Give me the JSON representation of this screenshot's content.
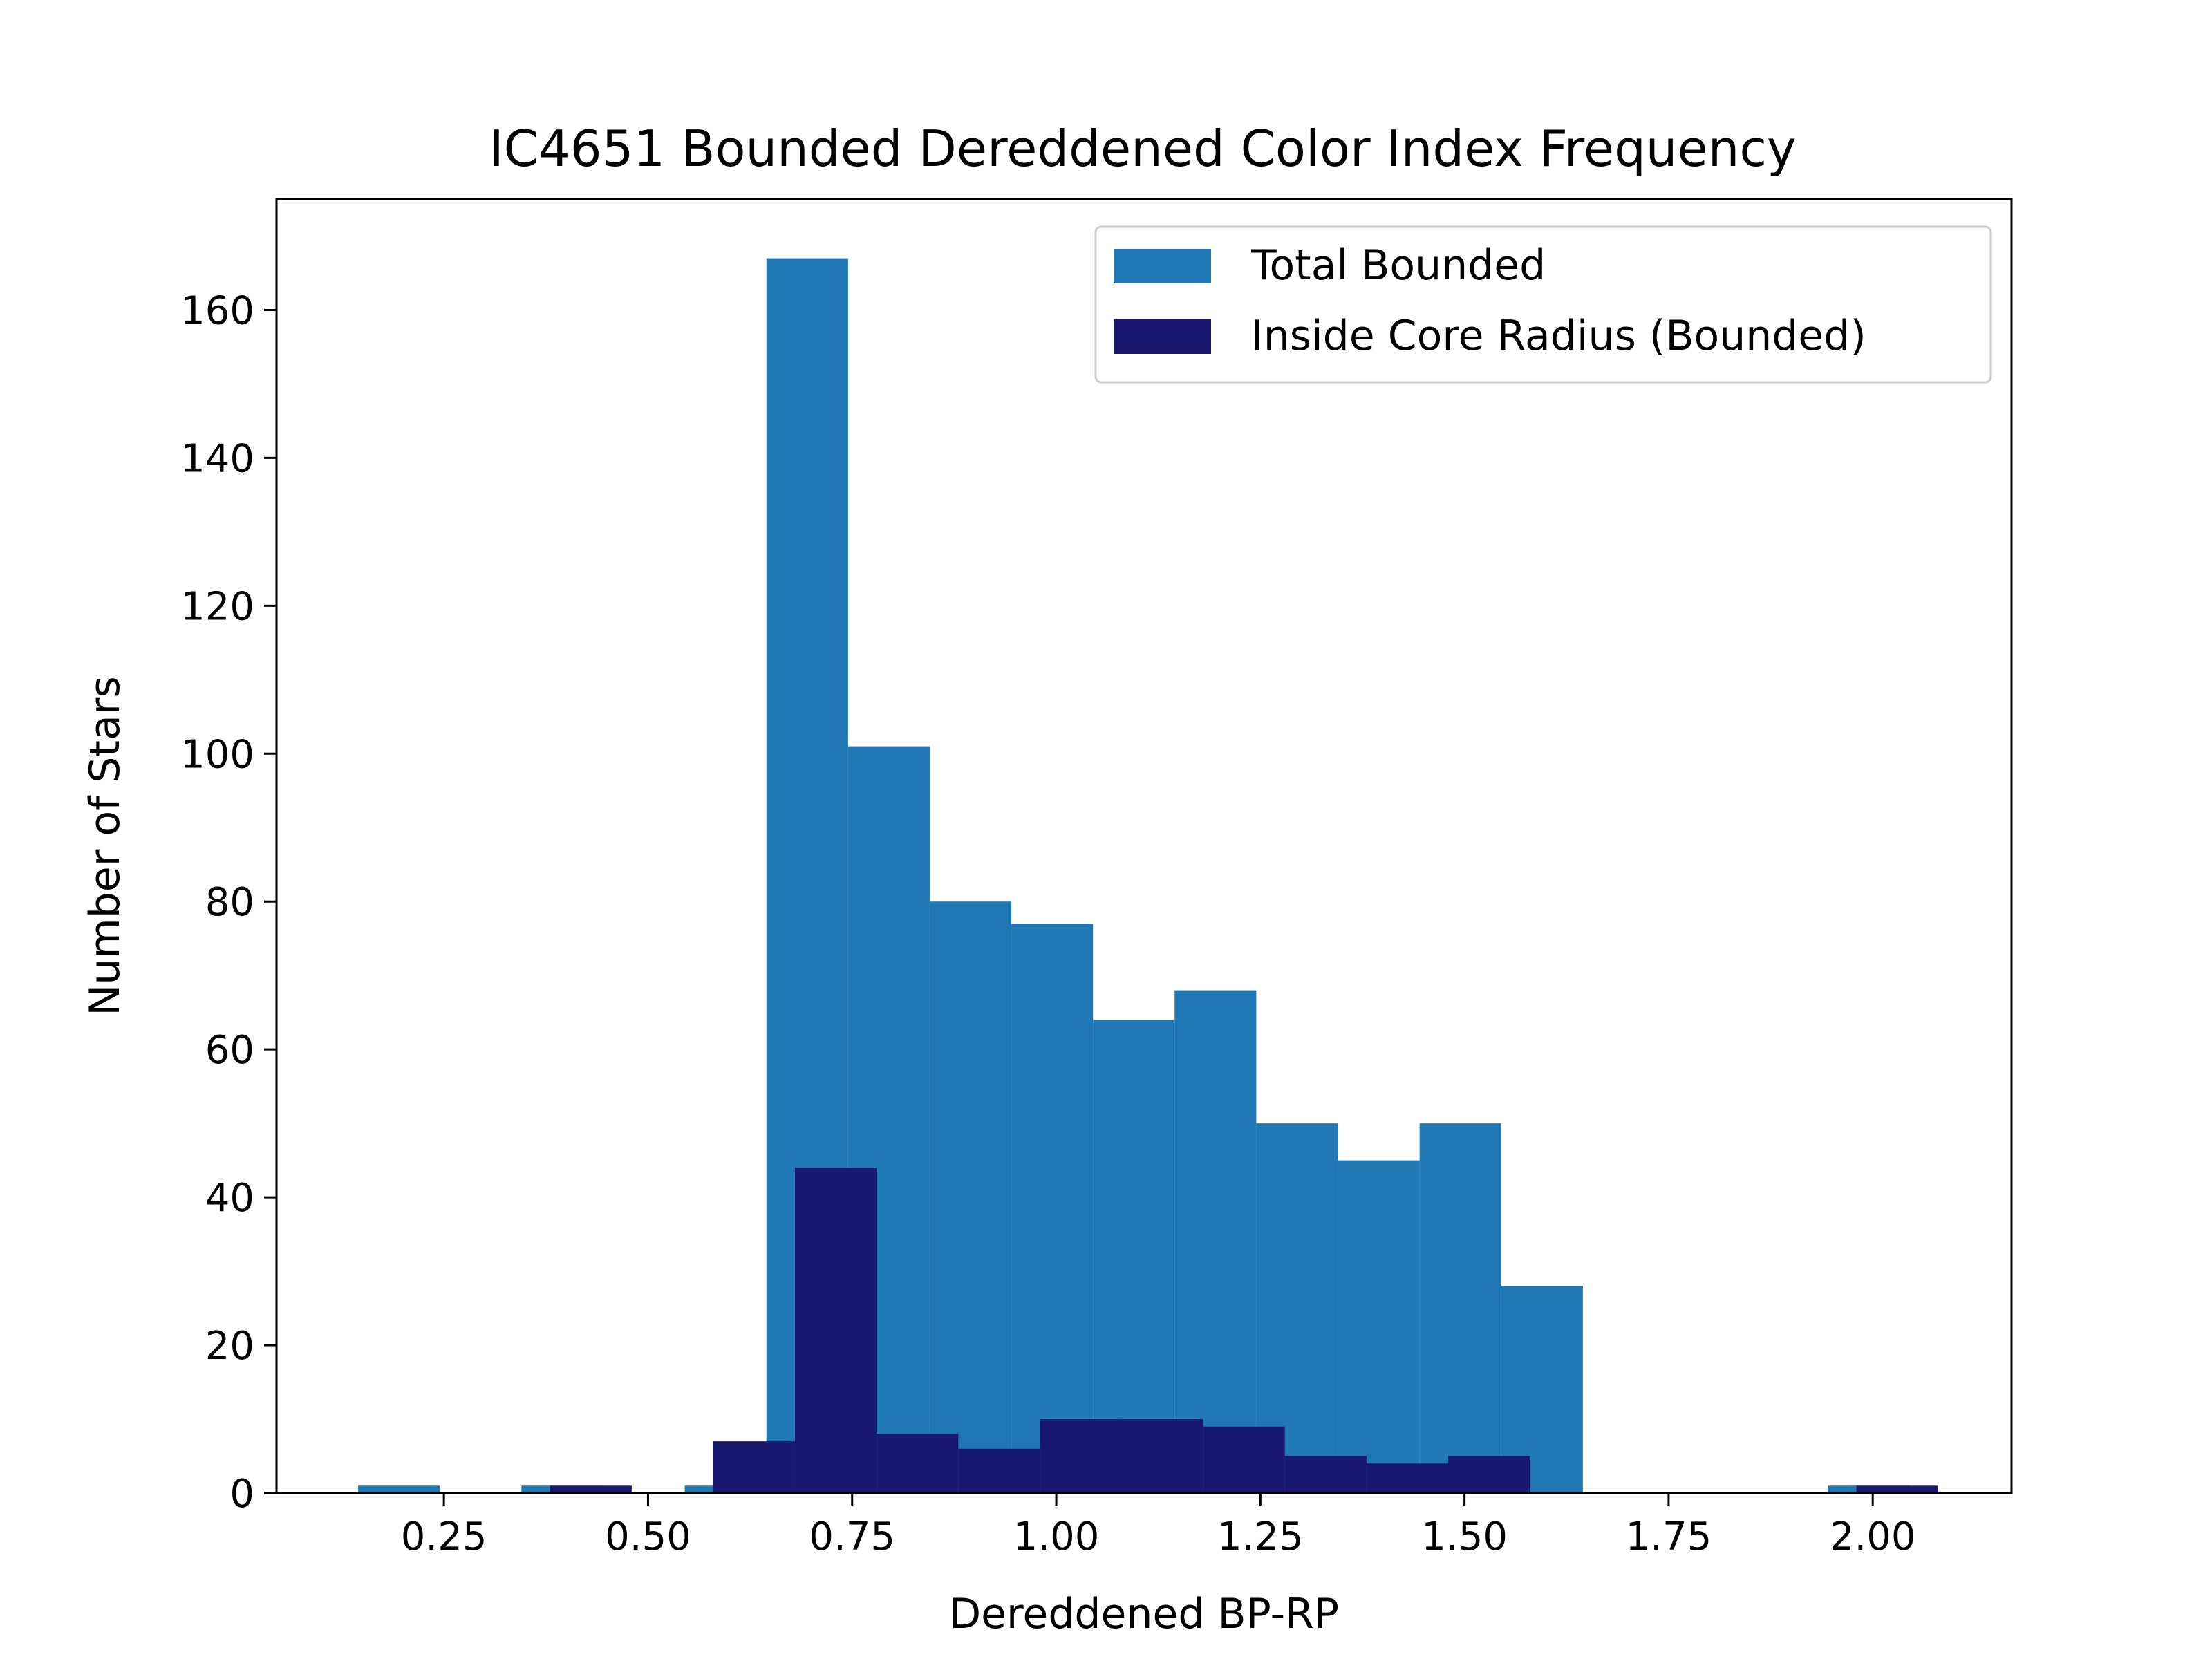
{
  "chart_data": {
    "type": "bar",
    "title": "IC4651 Bounded Dereddened Color Index Frequency",
    "xlabel": "Dereddened BP-RP",
    "ylabel": "Number of Stars",
    "xlim": [
      0.045,
      2.17
    ],
    "ylim": [
      0,
      175
    ],
    "x_ticks": [
      0.25,
      0.5,
      0.75,
      1.0,
      1.25,
      1.5,
      1.75,
      2.0
    ],
    "x_tick_labels": [
      "0.25",
      "0.50",
      "0.75",
      "1.00",
      "1.25",
      "1.50",
      "1.75",
      "2.00"
    ],
    "y_ticks": [
      0,
      20,
      40,
      60,
      80,
      100,
      120,
      140,
      160
    ],
    "y_tick_labels": [
      "0",
      "20",
      "40",
      "60",
      "80",
      "100",
      "120",
      "140",
      "160"
    ],
    "grid": false,
    "legend_position": "top-right",
    "series": [
      {
        "name": "Total Bounded",
        "color": "#1f77b4",
        "bins": [
          {
            "x0": 0.145,
            "x1": 0.245,
            "value": 1
          },
          {
            "x0": 0.245,
            "x1": 0.345,
            "value": 0
          },
          {
            "x0": 0.345,
            "x1": 0.445,
            "value": 1
          },
          {
            "x0": 0.445,
            "x1": 0.545,
            "value": 0
          },
          {
            "x0": 0.545,
            "x1": 0.645,
            "value": 1
          },
          {
            "x0": 0.645,
            "x1": 0.745,
            "value": 167
          },
          {
            "x0": 0.745,
            "x1": 0.845,
            "value": 101
          },
          {
            "x0": 0.845,
            "x1": 0.945,
            "value": 80
          },
          {
            "x0": 0.945,
            "x1": 1.045,
            "value": 77
          },
          {
            "x0": 1.045,
            "x1": 1.145,
            "value": 64
          },
          {
            "x0": 1.145,
            "x1": 1.245,
            "value": 68
          },
          {
            "x0": 1.245,
            "x1": 1.345,
            "value": 50
          },
          {
            "x0": 1.345,
            "x1": 1.445,
            "value": 45
          },
          {
            "x0": 1.445,
            "x1": 1.545,
            "value": 50
          },
          {
            "x0": 1.545,
            "x1": 1.645,
            "value": 28
          },
          {
            "x0": 1.645,
            "x1": 1.745,
            "value": 0
          },
          {
            "x0": 1.745,
            "x1": 1.845,
            "value": 0
          },
          {
            "x0": 1.845,
            "x1": 1.945,
            "value": 0
          },
          {
            "x0": 1.945,
            "x1": 2.045,
            "value": 1
          }
        ]
      },
      {
        "name": "Inside Core Radius (Bounded)",
        "color": "#191970",
        "bins": [
          {
            "x0": 0.38,
            "x1": 0.48,
            "value": 1
          },
          {
            "x0": 0.48,
            "x1": 0.58,
            "value": 0
          },
          {
            "x0": 0.58,
            "x1": 0.68,
            "value": 7
          },
          {
            "x0": 0.68,
            "x1": 0.78,
            "value": 44
          },
          {
            "x0": 0.78,
            "x1": 0.88,
            "value": 8
          },
          {
            "x0": 0.88,
            "x1": 0.98,
            "value": 6
          },
          {
            "x0": 0.98,
            "x1": 1.08,
            "value": 10
          },
          {
            "x0": 1.08,
            "x1": 1.18,
            "value": 10
          },
          {
            "x0": 1.18,
            "x1": 1.28,
            "value": 9
          },
          {
            "x0": 1.28,
            "x1": 1.38,
            "value": 5
          },
          {
            "x0": 1.38,
            "x1": 1.48,
            "value": 4
          },
          {
            "x0": 1.48,
            "x1": 1.58,
            "value": 5
          },
          {
            "x0": 1.58,
            "x1": 1.68,
            "value": 0
          },
          {
            "x0": 1.68,
            "x1": 1.78,
            "value": 0
          },
          {
            "x0": 1.78,
            "x1": 1.88,
            "value": 0
          },
          {
            "x0": 1.88,
            "x1": 1.98,
            "value": 0
          },
          {
            "x0": 1.98,
            "x1": 2.08,
            "value": 1
          }
        ]
      }
    ]
  }
}
